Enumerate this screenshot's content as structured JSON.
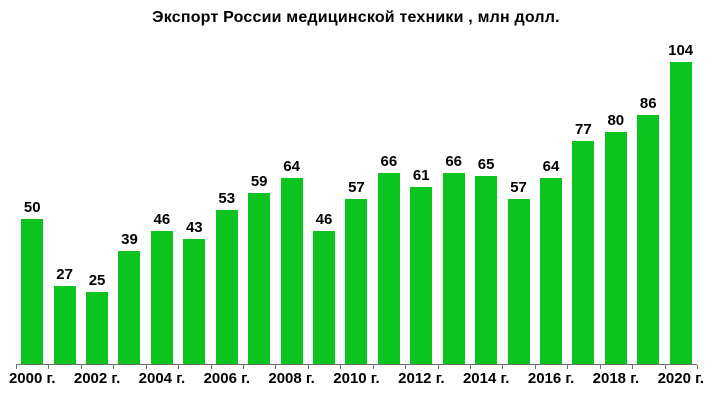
{
  "chart_data": {
    "type": "bar",
    "title": "Экспорт России медицинской техники , млн долл.",
    "categories": [
      "2000",
      "2001",
      "2002",
      "2003",
      "2004",
      "2005",
      "2006",
      "2007",
      "2008",
      "2009",
      "2010",
      "2011",
      "2012",
      "2013",
      "2014",
      "2015",
      "2016",
      "2017",
      "2018",
      "2019",
      "2020"
    ],
    "values": [
      50,
      27,
      25,
      39,
      46,
      43,
      53,
      59,
      64,
      46,
      57,
      66,
      61,
      66,
      65,
      57,
      64,
      77,
      80,
      86,
      104
    ],
    "x_tick_labels": [
      "2000 г.",
      "2002 г.",
      "2004 г.",
      "2006 г.",
      "2008 г.",
      "2010 г.",
      "2012 г.",
      "2014 г.",
      "2016 г.",
      "2018 г.",
      "2020 г."
    ],
    "x_label_every": 2,
    "xlabel": "",
    "ylabel": "",
    "ylim": [
      0,
      110
    ],
    "grid": "off",
    "legend": "none",
    "data_labels": "above-bars",
    "bar_color": "#0cc41e",
    "axis_line_color": "#6e6e6e",
    "text_color": "#000000",
    "background_color": "#ffffff"
  }
}
